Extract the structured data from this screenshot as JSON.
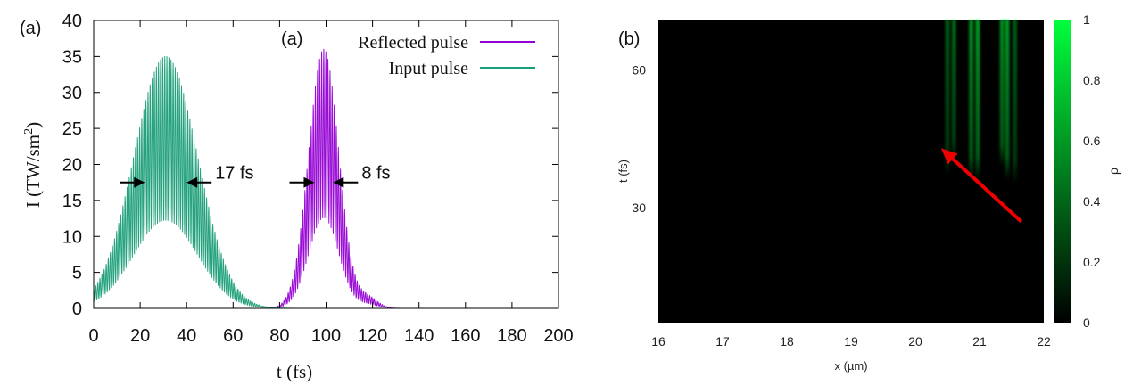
{
  "chart_data": [
    {
      "type": "line",
      "panel_label": "(a)",
      "inner_label": "(a)",
      "xlabel": "t (fs)",
      "ylabel": "I (TW/sm",
      "ylabel_sup": "2",
      "ylabel_close": ")",
      "xlim": [
        0,
        200
      ],
      "ylim": [
        0,
        40
      ],
      "xticks": [
        0,
        20,
        40,
        60,
        80,
        100,
        120,
        140,
        160,
        180,
        200
      ],
      "yticks": [
        0,
        5,
        10,
        15,
        20,
        25,
        30,
        35,
        40
      ],
      "series": [
        {
          "name": "Reflected pulse",
          "color": "#9400d3",
          "center": 99,
          "peak": 36,
          "fwhm": 8,
          "secondary_bump": {
            "center": 118,
            "peak": 1.5,
            "fwhm": 10
          }
        },
        {
          "name": "Input pulse",
          "color": "#1a9e77",
          "center": 31,
          "peak": 35,
          "fwhm": 17
        }
      ],
      "annotations": [
        {
          "text": "17 fs",
          "y": 17.5,
          "x_from": 22,
          "x_to": 40
        },
        {
          "text": "8 fs",
          "y": 17.5,
          "x_from": 95,
          "x_to": 103
        }
      ]
    },
    {
      "type": "heatmap",
      "panel_label": "(b)",
      "xlabel": "x (µm)",
      "ylabel": "t (fs)",
      "xlim": [
        16,
        22
      ],
      "ylim": [
        5,
        71
      ],
      "xticks": [
        16,
        17,
        18,
        19,
        20,
        21,
        22
      ],
      "yticks": [
        30,
        60
      ],
      "colorbar": {
        "label": "ρ",
        "range": [
          0,
          1
        ],
        "ticks": [
          "0",
          "0.2",
          "0.4",
          "0.6",
          "0.8",
          "1"
        ],
        "low_color": "#000000",
        "high_color": "#00ff3c"
      },
      "streaks": [
        {
          "x": 20.5,
          "t_start": 37,
          "intensity": 0.35
        },
        {
          "x": 20.6,
          "t_start": 40,
          "intensity": 0.4
        },
        {
          "x": 20.87,
          "t_start": 36,
          "intensity": 0.55
        },
        {
          "x": 20.97,
          "t_start": 36,
          "intensity": 0.6
        },
        {
          "x": 21.35,
          "t_start": 39,
          "intensity": 0.55
        },
        {
          "x": 21.43,
          "t_start": 36,
          "intensity": 0.6
        },
        {
          "x": 21.55,
          "t_start": 35,
          "intensity": 0.35
        }
      ],
      "arrow": {
        "from": [
          21.65,
          27
        ],
        "to": [
          20.4,
          43
        ],
        "color": "#ee0000"
      }
    }
  ]
}
